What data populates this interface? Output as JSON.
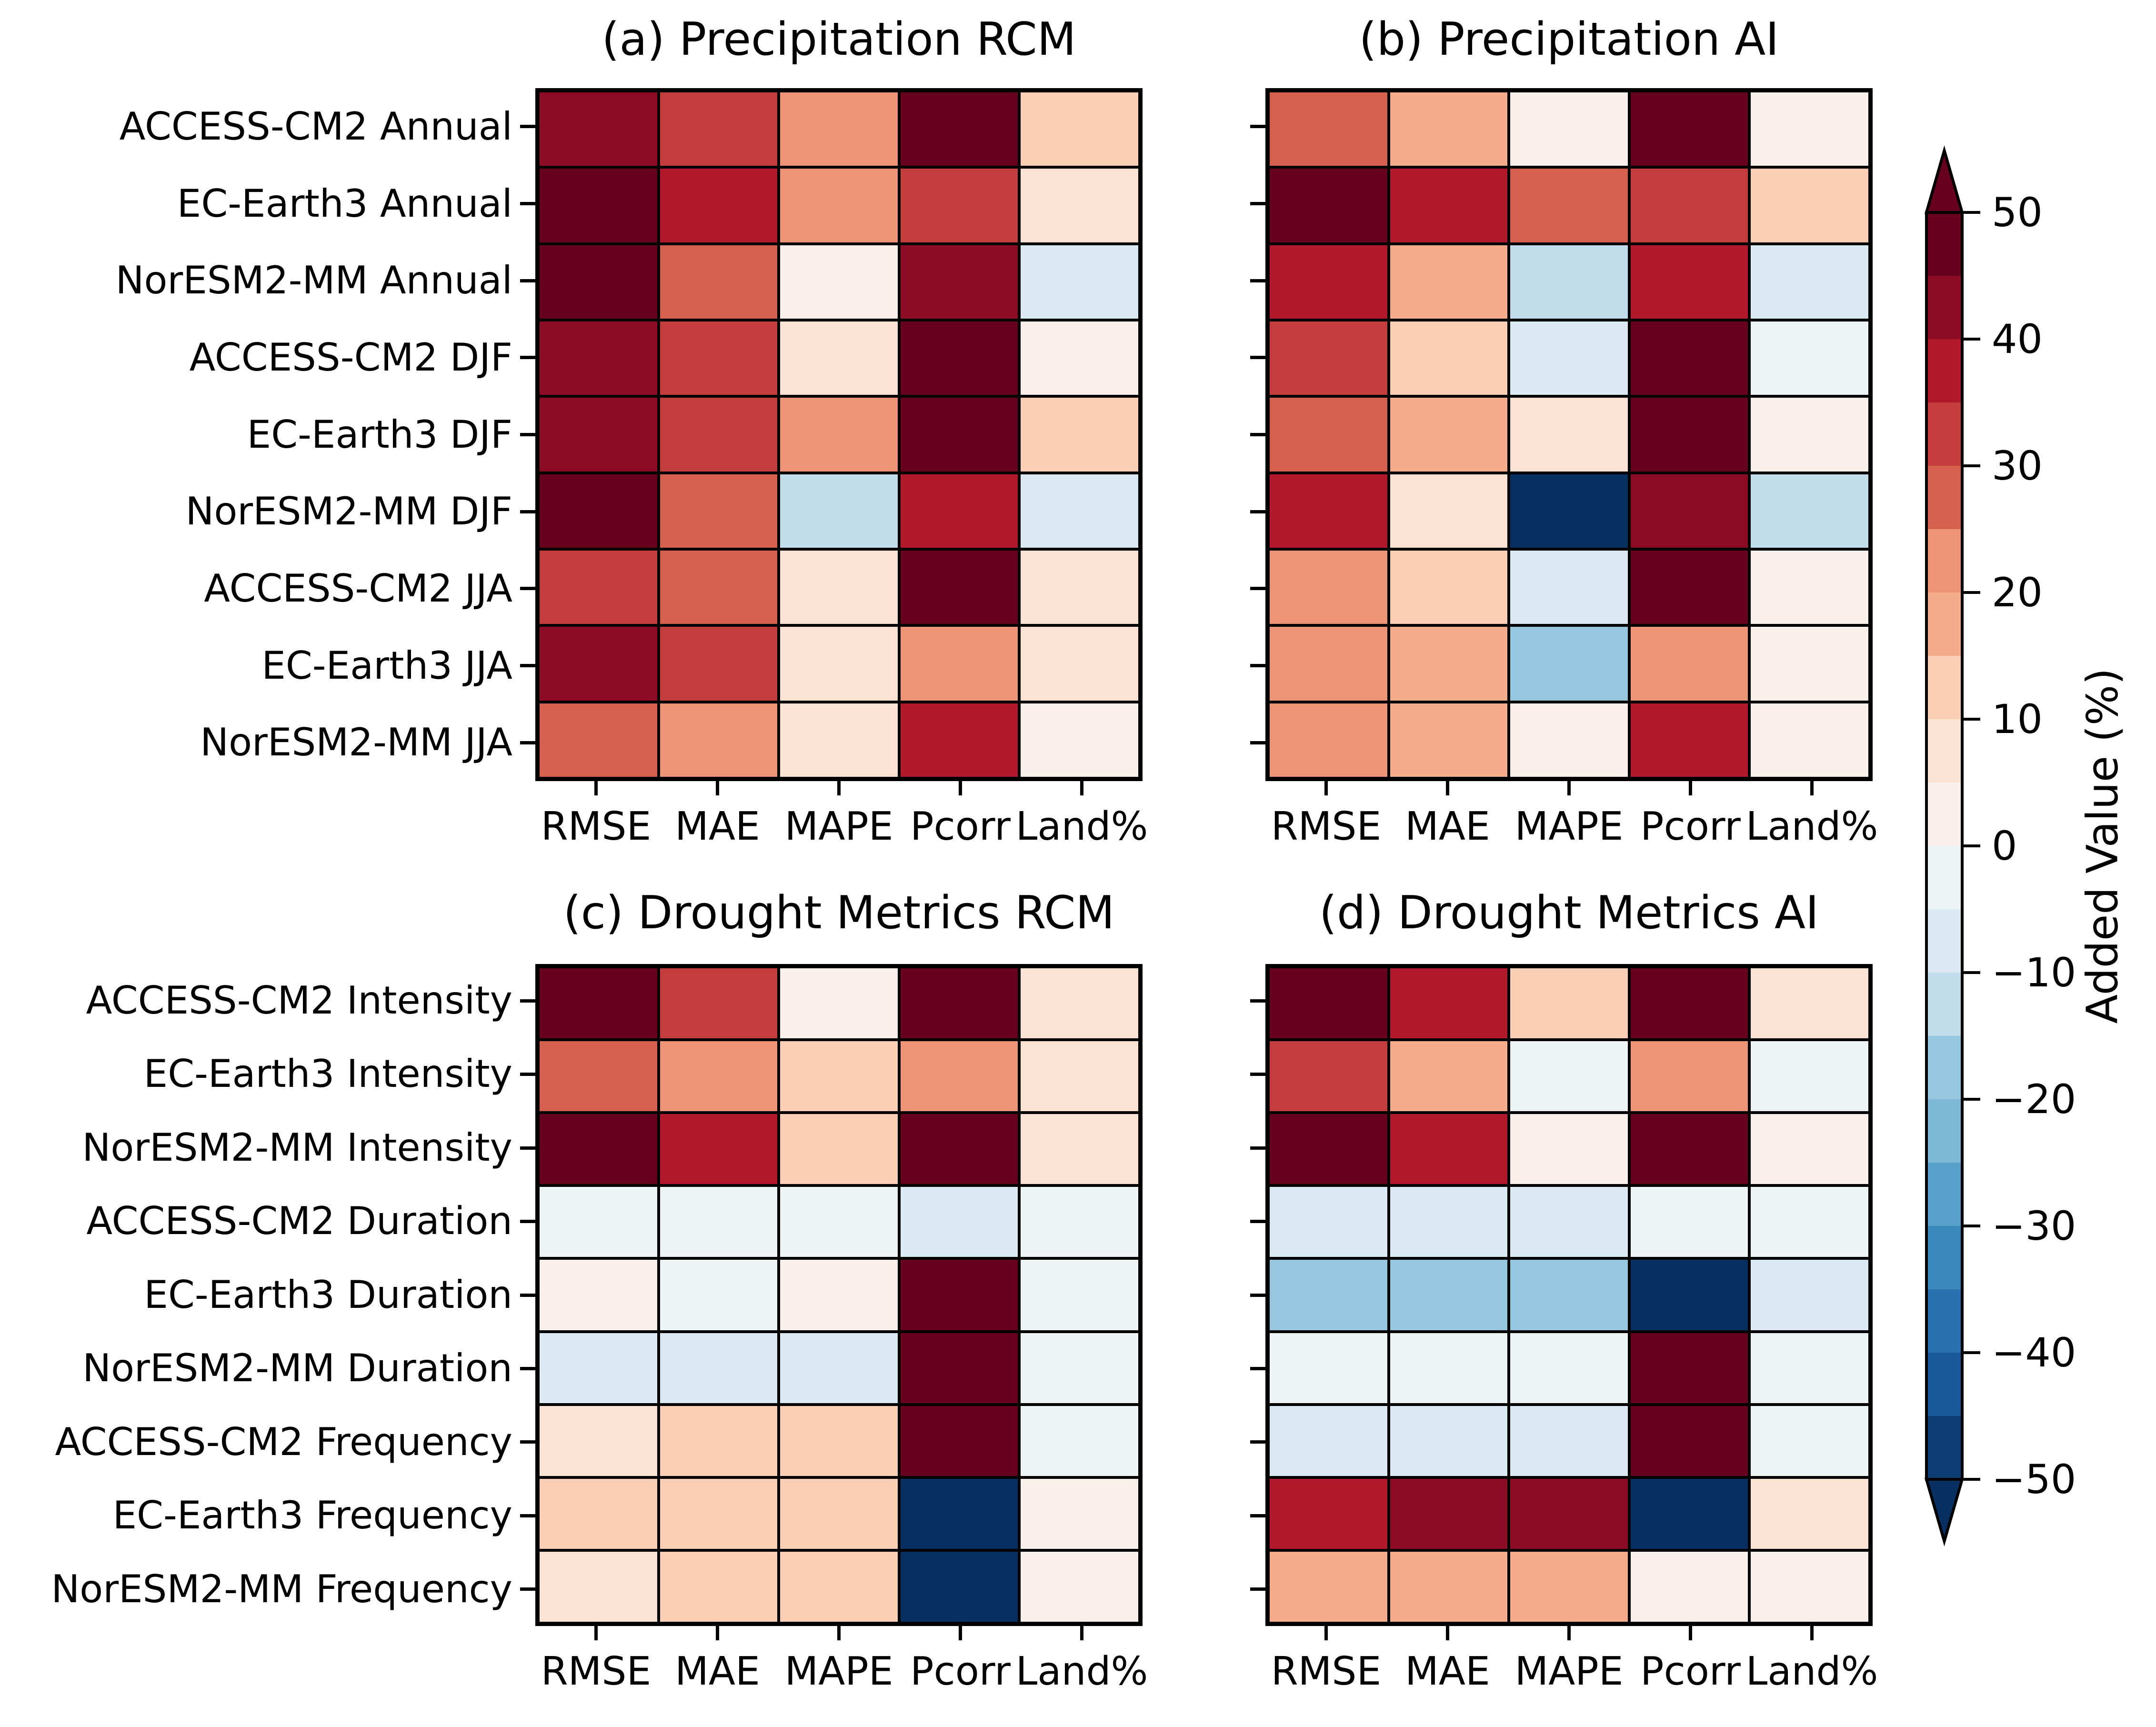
{
  "chart_data": {
    "type": "heatmap",
    "value_unit": "%",
    "columns": [
      "RMSE",
      "MAE",
      "MAPE",
      "Pcorr",
      "Land%"
    ],
    "panels": [
      {
        "key": "a",
        "title": "(a) Precipitation RCM",
        "rows": [
          {
            "label": "ACCESS-CM2 Annual",
            "values": [
              42,
              32,
              22,
              48,
              12
            ]
          },
          {
            "label": "EC-Earth3 Annual",
            "values": [
              48,
              37,
              22,
              32,
              7
            ]
          },
          {
            "label": "NorESM2-MM Annual",
            "values": [
              48,
              27,
              2,
              42,
              -8
            ]
          },
          {
            "label": "ACCESS-CM2 DJF",
            "values": [
              42,
              32,
              7,
              48,
              2
            ]
          },
          {
            "label": "EC-Earth3 DJF",
            "values": [
              42,
              32,
              22,
              48,
              12
            ]
          },
          {
            "label": "NorESM2-MM DJF",
            "values": [
              48,
              27,
              -13,
              37,
              -8
            ]
          },
          {
            "label": "ACCESS-CM2 JJA",
            "values": [
              32,
              27,
              7,
              48,
              7
            ]
          },
          {
            "label": "EC-Earth3 JJA",
            "values": [
              42,
              32,
              7,
              22,
              7
            ]
          },
          {
            "label": "NorESM2-MM JJA",
            "values": [
              27,
              22,
              7,
              37,
              2
            ]
          }
        ]
      },
      {
        "key": "b",
        "title": "(b) Precipitation AI",
        "rows": [
          {
            "label": "ACCESS-CM2 Annual",
            "values": [
              27,
              17,
              2,
              48,
              2
            ]
          },
          {
            "label": "EC-Earth3 Annual",
            "values": [
              48,
              37,
              27,
              32,
              12
            ]
          },
          {
            "label": "NorESM2-MM Annual",
            "values": [
              37,
              17,
              -13,
              37,
              -8
            ]
          },
          {
            "label": "ACCESS-CM2 DJF",
            "values": [
              32,
              12,
              -8,
              48,
              -3
            ]
          },
          {
            "label": "EC-Earth3 DJF",
            "values": [
              27,
              17,
              7,
              48,
              2
            ]
          },
          {
            "label": "NorESM2-MM DJF",
            "values": [
              37,
              7,
              -48,
              42,
              -13
            ]
          },
          {
            "label": "ACCESS-CM2 JJA",
            "values": [
              22,
              12,
              -8,
              48,
              2
            ]
          },
          {
            "label": "EC-Earth3 JJA",
            "values": [
              22,
              17,
              -18,
              22,
              2
            ]
          },
          {
            "label": "NorESM2-MM JJA",
            "values": [
              22,
              17,
              2,
              37,
              2
            ]
          }
        ]
      },
      {
        "key": "c",
        "title": "(c) Drought Metrics RCM",
        "rows": [
          {
            "label": "ACCESS-CM2 Intensity",
            "values": [
              48,
              32,
              2,
              48,
              7
            ]
          },
          {
            "label": "EC-Earth3 Intensity",
            "values": [
              27,
              22,
              12,
              22,
              7
            ]
          },
          {
            "label": "NorESM2-MM Intensity",
            "values": [
              48,
              37,
              12,
              48,
              7
            ]
          },
          {
            "label": "ACCESS-CM2 Duration",
            "values": [
              -3,
              -3,
              -3,
              -8,
              -3
            ]
          },
          {
            "label": "EC-Earth3 Duration",
            "values": [
              2,
              -3,
              2,
              48,
              -3
            ]
          },
          {
            "label": "NorESM2-MM Duration",
            "values": [
              -8,
              -8,
              -8,
              48,
              -3
            ]
          },
          {
            "label": "ACCESS-CM2 Frequency",
            "values": [
              7,
              12,
              12,
              48,
              -3
            ]
          },
          {
            "label": "EC-Earth3 Frequency",
            "values": [
              12,
              12,
              12,
              -48,
              2
            ]
          },
          {
            "label": "NorESM2-MM Frequency",
            "values": [
              7,
              12,
              12,
              -48,
              2
            ]
          }
        ]
      },
      {
        "key": "d",
        "title": "(d) Drought Metrics AI",
        "rows": [
          {
            "label": "ACCESS-CM2 Intensity",
            "values": [
              48,
              37,
              12,
              48,
              7
            ]
          },
          {
            "label": "EC-Earth3 Intensity",
            "values": [
              32,
              17,
              -3,
              22,
              -3
            ]
          },
          {
            "label": "NorESM2-MM Intensity",
            "values": [
              48,
              37,
              2,
              48,
              2
            ]
          },
          {
            "label": "ACCESS-CM2 Duration",
            "values": [
              -8,
              -8,
              -8,
              -3,
              -3
            ]
          },
          {
            "label": "EC-Earth3 Duration",
            "values": [
              -18,
              -18,
              -18,
              -48,
              -8
            ]
          },
          {
            "label": "NorESM2-MM Duration",
            "values": [
              -3,
              -3,
              -3,
              48,
              -3
            ]
          },
          {
            "label": "ACCESS-CM2 Frequency",
            "values": [
              -8,
              -8,
              -8,
              48,
              -3
            ]
          },
          {
            "label": "EC-Earth3 Frequency",
            "values": [
              37,
              42,
              42,
              -48,
              7
            ]
          },
          {
            "label": "NorESM2-MM Frequency",
            "values": [
              17,
              17,
              17,
              2,
              2
            ]
          }
        ]
      }
    ],
    "colorbar": {
      "label": "Added Value (%)",
      "range": [
        -50,
        50
      ],
      "bin_size": 5,
      "tick_labels": [
        "50",
        "40",
        "30",
        "20",
        "10",
        "0",
        "−10",
        "−20",
        "−30",
        "−40",
        "−50"
      ],
      "segments_top_to_bottom": [
        "#67001f",
        "#8c0b25",
        "#b2182b",
        "#c43d3d",
        "#d5604d",
        "#ec9475",
        "#f4ac8a",
        "#fbceb6",
        "#fce2d3",
        "#f9f0eb",
        "#eef3f5",
        "#dbeaf2",
        "#c1ddec",
        "#96c7de",
        "#7eb8d7",
        "#57a0ca",
        "#3b88bd",
        "#2a71b2",
        "#1a5999",
        "#0c3e74"
      ],
      "over_arrow_color": "#67001f",
      "under_arrow_color": "#053061"
    },
    "palette_bins": [
      {
        "min": 45,
        "color": "#67001f"
      },
      {
        "min": 40,
        "color": "#8c0b25"
      },
      {
        "min": 35,
        "color": "#b2182b"
      },
      {
        "min": 30,
        "color": "#c43d3d"
      },
      {
        "min": 25,
        "color": "#d5604d"
      },
      {
        "min": 20,
        "color": "#ec9475"
      },
      {
        "min": 15,
        "color": "#f4ac8a"
      },
      {
        "min": 10,
        "color": "#fbceb6"
      },
      {
        "min": 5,
        "color": "#fce2d3"
      },
      {
        "min": 0,
        "color": "#f9f0eb"
      },
      {
        "min": -5,
        "color": "#eef3f5"
      },
      {
        "min": -10,
        "color": "#dbeaf2"
      },
      {
        "min": -15,
        "color": "#c1ddec"
      },
      {
        "min": -20,
        "color": "#96c7de"
      },
      {
        "min": -25,
        "color": "#7eb8d7"
      },
      {
        "min": -30,
        "color": "#57a0ca"
      },
      {
        "min": -35,
        "color": "#3b88bd"
      },
      {
        "min": -40,
        "color": "#2a71b2"
      },
      {
        "min": -45,
        "color": "#1a5999"
      },
      {
        "min": -50,
        "color": "#053061"
      }
    ],
    "grid_line_color": "#000000",
    "background_color": "#ffffff"
  }
}
